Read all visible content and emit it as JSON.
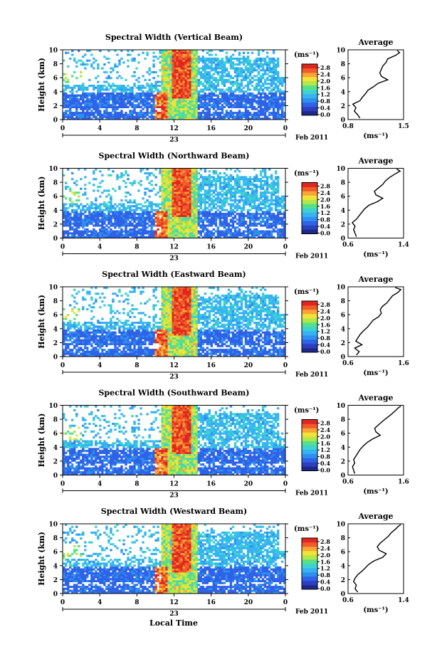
{
  "figure": {
    "xlabel": "Local Time",
    "date_label": "Feb 2011",
    "day_label": "23",
    "unit_label": "(ms⁻¹)",
    "avg_title": "Average",
    "avg_xlabel": "(ms⁻¹)",
    "colorbar_ticks": [
      "0.0",
      "0.4",
      "0.8",
      "1.2",
      "1.6",
      "2.0",
      "2.4",
      "2.8"
    ],
    "colorbar_colors": [
      "#1b2a8a",
      "#2d3fbf",
      "#2f62e6",
      "#2f8fef",
      "#37b3f2",
      "#3dd2d0",
      "#56e08a",
      "#b0e84a",
      "#f2e23a",
      "#f7a534",
      "#f05b2c",
      "#e0261e"
    ]
  },
  "chart_data": [
    {
      "type": "heatmap",
      "title": "Spectral Width (Vertical Beam)",
      "ylabel": "Height (km)",
      "xlabel": "Local Time",
      "x_ticks": [
        "0",
        "4",
        "8",
        "12",
        "16",
        "20",
        "0"
      ],
      "y_ticks": [
        "0",
        "2",
        "4",
        "6",
        "8",
        "10"
      ],
      "xlim": [
        0,
        24
      ],
      "ylim": [
        0,
        10
      ],
      "zlim": [
        0,
        3.0
      ],
      "avg": {
        "xlim": [
          0.8,
          1.5
        ],
        "x_ticks": [
          "0.8",
          "1.5"
        ],
        "y_ticks": [
          "0",
          "2",
          "4",
          "6",
          "8",
          "10"
        ],
        "width": [
          0.95,
          0.92,
          0.88,
          0.9,
          0.86,
          0.95,
          0.98,
          1.02,
          1.05,
          1.12,
          1.18,
          1.3,
          1.22,
          1.2,
          1.22,
          1.24,
          1.28,
          1.3,
          1.4,
          1.45,
          1.42
        ],
        "height": [
          0.2,
          0.7,
          1.2,
          1.7,
          2.2,
          2.7,
          3.2,
          3.7,
          4.2,
          4.7,
          5.2,
          5.7,
          6.2,
          6.7,
          7.2,
          7.7,
          8.2,
          8.7,
          9.2,
          9.6,
          9.9
        ]
      }
    },
    {
      "type": "heatmap",
      "title": "Spectral Width (Northward Beam)",
      "ylabel": "Height (km)",
      "xlabel": "Local Time",
      "x_ticks": [
        "0",
        "4",
        "8",
        "12",
        "16",
        "20",
        "0"
      ],
      "y_ticks": [
        "0",
        "2",
        "4",
        "6",
        "8",
        "10"
      ],
      "xlim": [
        0,
        24
      ],
      "ylim": [
        0,
        10
      ],
      "zlim": [
        0,
        3.0
      ],
      "avg": {
        "xlim": [
          0.6,
          1.4
        ],
        "x_ticks": [
          "0.6",
          "1.4"
        ],
        "y_ticks": [
          "0",
          "2",
          "4",
          "6",
          "8",
          "10"
        ],
        "width": [
          0.72,
          0.7,
          0.68,
          0.7,
          0.66,
          0.72,
          0.76,
          0.8,
          0.84,
          0.9,
          1.02,
          1.1,
          1.0,
          0.98,
          1.04,
          1.1,
          1.14,
          1.2,
          1.28,
          1.35,
          1.3
        ],
        "height": [
          0.2,
          0.7,
          1.2,
          1.7,
          2.2,
          2.7,
          3.2,
          3.7,
          4.2,
          4.7,
          5.2,
          5.7,
          6.2,
          6.7,
          7.2,
          7.7,
          8.2,
          8.7,
          9.2,
          9.6,
          9.9
        ]
      }
    },
    {
      "type": "heatmap",
      "title": "Spectral Width (Eastward Beam)",
      "ylabel": "Height (km)",
      "xlabel": "Local Time",
      "x_ticks": [
        "0",
        "4",
        "8",
        "12",
        "16",
        "20",
        "0"
      ],
      "y_ticks": [
        "0",
        "2",
        "4",
        "6",
        "8",
        "10"
      ],
      "xlim": [
        0,
        24
      ],
      "ylim": [
        0,
        10
      ],
      "zlim": [
        0,
        3.0
      ],
      "avg": {
        "xlim": [
          0.6,
          1.6
        ],
        "x_ticks": [
          "0.6",
          "1.6"
        ],
        "y_ticks": [
          "0",
          "2",
          "4",
          "6",
          "8",
          "10"
        ],
        "width": [
          0.75,
          0.8,
          0.72,
          0.85,
          0.74,
          0.78,
          0.82,
          0.88,
          0.95,
          1.0,
          1.05,
          1.15,
          1.2,
          1.18,
          1.22,
          1.3,
          1.35,
          1.4,
          1.5,
          1.55,
          1.45
        ],
        "height": [
          0.2,
          0.7,
          1.2,
          1.7,
          2.2,
          2.7,
          3.2,
          3.7,
          4.2,
          4.7,
          5.2,
          5.7,
          6.2,
          6.7,
          7.2,
          7.7,
          8.2,
          8.7,
          9.2,
          9.6,
          9.9
        ]
      }
    },
    {
      "type": "heatmap",
      "title": "Spectral Width (Southward Beam)",
      "ylabel": "Height (km)",
      "xlabel": "Local Time",
      "x_ticks": [
        "0",
        "4",
        "8",
        "12",
        "16",
        "20",
        "0"
      ],
      "y_ticks": [
        "0",
        "2",
        "4",
        "6",
        "8",
        "10"
      ],
      "xlim": [
        0,
        24
      ],
      "ylim": [
        0,
        10
      ],
      "zlim": [
        0,
        3.0
      ],
      "avg": {
        "xlim": [
          0.6,
          1.6
        ],
        "x_ticks": [
          "0.6",
          "1.6"
        ],
        "y_ticks": [
          "0",
          "2",
          "4",
          "6",
          "8",
          "10"
        ],
        "width": [
          0.72,
          0.7,
          0.68,
          0.72,
          0.7,
          0.74,
          0.78,
          0.82,
          0.88,
          0.95,
          1.05,
          1.18,
          1.1,
          1.08,
          1.15,
          1.22,
          1.3,
          1.38,
          1.45,
          1.5,
          1.55
        ],
        "height": [
          0.2,
          0.7,
          1.2,
          1.7,
          2.2,
          2.7,
          3.2,
          3.7,
          4.2,
          4.7,
          5.2,
          5.7,
          6.2,
          6.7,
          7.2,
          7.7,
          8.2,
          8.7,
          9.2,
          9.6,
          9.9
        ]
      }
    },
    {
      "type": "heatmap",
      "title": "Spectral Width (Westward Beam)",
      "ylabel": "Height (km)",
      "xlabel": "Local Time",
      "x_ticks": [
        "0",
        "4",
        "8",
        "12",
        "16",
        "20",
        "0"
      ],
      "y_ticks": [
        "0",
        "2",
        "4",
        "6",
        "8",
        "10"
      ],
      "xlim": [
        0,
        24
      ],
      "ylim": [
        0,
        10
      ],
      "zlim": [
        0,
        3.0
      ],
      "avg": {
        "xlim": [
          0.6,
          1.4
        ],
        "x_ticks": [
          "0.6",
          "1.4"
        ],
        "y_ticks": [
          "0",
          "2",
          "4",
          "6",
          "8",
          "10"
        ],
        "width": [
          0.74,
          0.7,
          0.72,
          0.68,
          0.7,
          0.74,
          0.8,
          0.85,
          0.9,
          0.98,
          1.1,
          1.15,
          1.05,
          1.02,
          1.06,
          1.12,
          1.18,
          1.22,
          1.28,
          1.32,
          1.36
        ],
        "height": [
          0.2,
          0.7,
          1.2,
          1.7,
          2.2,
          2.7,
          3.2,
          3.7,
          4.2,
          4.7,
          5.2,
          5.7,
          6.2,
          6.7,
          7.2,
          7.7,
          8.2,
          8.7,
          9.2,
          9.6,
          9.9
        ]
      }
    }
  ]
}
